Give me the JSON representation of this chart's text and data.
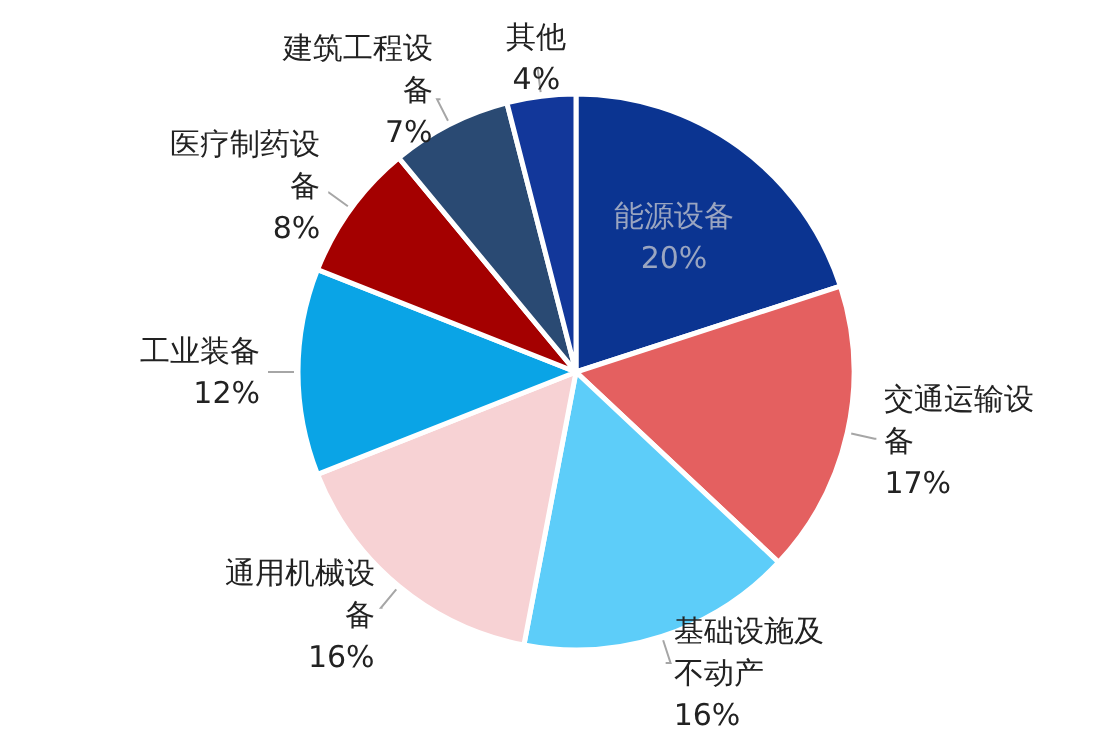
{
  "chart_data": {
    "type": "pie",
    "categories": [
      "能源设备",
      "交通运输设备",
      "基础设施及不动产",
      "通用机械设备",
      "工业装备",
      "医疗制药设备",
      "建筑工程设备",
      "其他"
    ],
    "values": [
      20,
      17,
      16,
      16,
      12,
      8,
      7,
      4
    ],
    "value_labels": [
      "20%",
      "17%",
      "16%",
      "16%",
      "12%",
      "8%",
      "7%",
      "4%"
    ],
    "colors": [
      "#0b3491",
      "#e46060",
      "#5dcdf9",
      "#f7d2d4",
      "#0aa4e6",
      "#a40000",
      "#2a4a73",
      "#12379a"
    ]
  }
}
